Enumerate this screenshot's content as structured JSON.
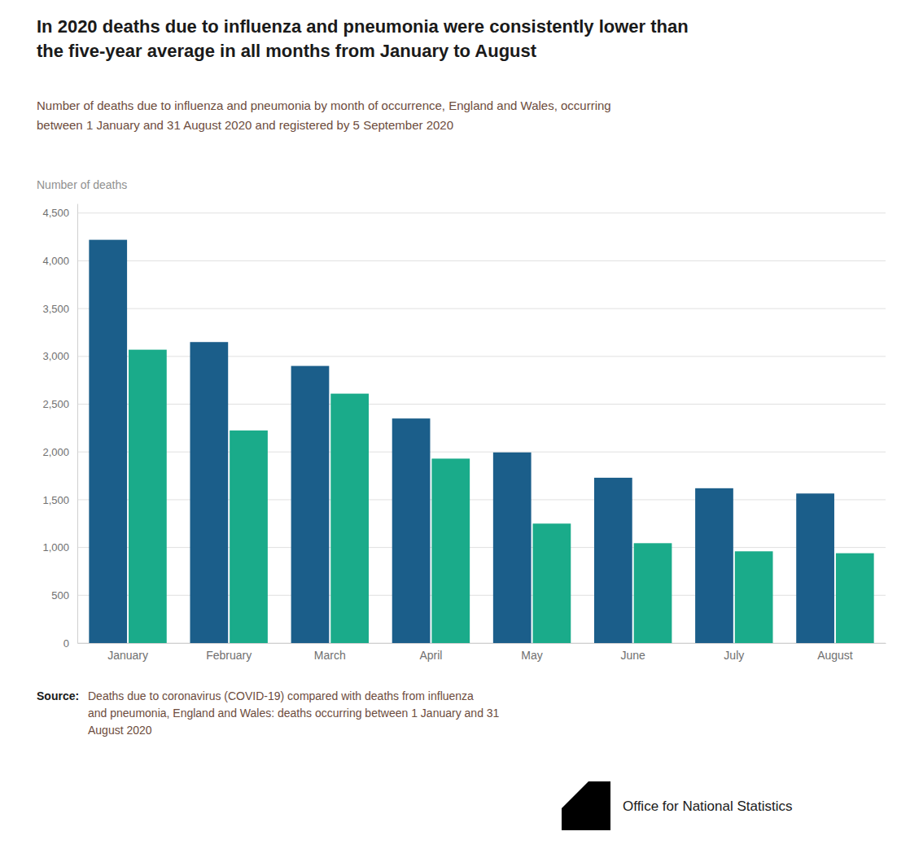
{
  "chart_data": {
    "type": "bar",
    "title": "In 2020 deaths due to influenza and pneumonia were consistently lower than\nthe five-year average in all months from January to August",
    "subtitle": "Number of deaths due to influenza and pneumonia by month of occurrence, England and Wales, occurring\nbetween 1 January and 31 August 2020 and registered by 5 September 2020",
    "y_label": "Number of deaths",
    "source_label": "Source:",
    "source": "Deaths due to coronavirus (COVID-19) compared with deaths from influenza\nand pneumonia, England and Wales: deaths occurring between 1 January and 31\nAugust 2020",
    "credit": "Office for National Statistics",
    "categories": [
      "January",
      "February",
      "March",
      "April",
      "May",
      "June",
      "July",
      "August"
    ],
    "series": [
      {
        "color": "#1b5e8a",
        "values": [
          4220,
          3150,
          2900,
          2350,
          1995,
          1730,
          1620,
          1565
        ]
      },
      {
        "color": "#1aab8a",
        "values": [
          3070,
          2225,
          2610,
          1930,
          1250,
          1045,
          960,
          940
        ]
      }
    ],
    "ylim": [
      0,
      4600
    ],
    "yticks": [
      0,
      500,
      {
        "value": 1000,
        "label": "1,000"
      },
      {
        "value": 1500,
        "label": "1,500"
      },
      {
        "value": 2000,
        "label": "2,000"
      },
      {
        "value": 2500,
        "label": "2,500"
      },
      {
        "value": 3000,
        "label": "3,000"
      },
      {
        "value": 3500,
        "label": "3,500"
      },
      {
        "value": 4000,
        "label": "4,000"
      },
      {
        "value": 4500,
        "label": "4,500"
      }
    ],
    "grid": true
  }
}
